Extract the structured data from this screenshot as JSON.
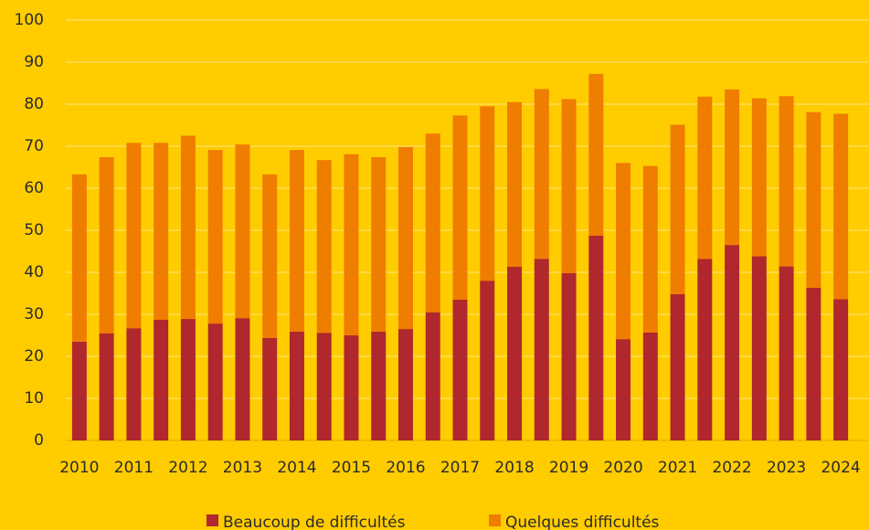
{
  "chart_data": {
    "type": "stacked_bar",
    "categories": [
      "2010",
      null,
      "2011",
      null,
      "2012",
      null,
      "2013",
      null,
      "2014",
      null,
      "2015",
      null,
      "2016",
      null,
      "2017",
      null,
      "2018",
      null,
      "2019",
      null,
      "2020",
      null,
      "2021",
      null,
      "2022",
      null,
      "2023",
      null,
      "2024"
    ],
    "series": [
      {
        "name": "Beaucoup de difficultés",
        "color": "#b0272d",
        "values": [
          23.5,
          25.5,
          26.7,
          28.7,
          28.9,
          27.8,
          29.1,
          24.4,
          25.9,
          25.6,
          25.0,
          25.9,
          26.5,
          30.5,
          33.5,
          38.0,
          41.3,
          43.2,
          39.8,
          48.7,
          24.1,
          25.7,
          34.8,
          43.2,
          46.5,
          43.8,
          41.4,
          36.3,
          33.6
        ]
      },
      {
        "name": "Quelques difficultés",
        "color": "#ef7d00",
        "values": [
          39.8,
          41.9,
          44.1,
          42.1,
          43.6,
          41.3,
          41.3,
          38.9,
          43.2,
          41.1,
          43.1,
          41.5,
          43.3,
          42.5,
          43.8,
          41.5,
          39.2,
          40.4,
          41.4,
          38.5,
          41.9,
          39.6,
          40.3,
          38.6,
          37.0,
          37.6,
          40.5,
          41.8,
          44.1
        ]
      }
    ],
    "ylim": [
      0,
      100
    ],
    "yticks": [
      0,
      10,
      20,
      30,
      40,
      50,
      60,
      70,
      80,
      90,
      100
    ],
    "grid": true,
    "legend": "bottom"
  }
}
